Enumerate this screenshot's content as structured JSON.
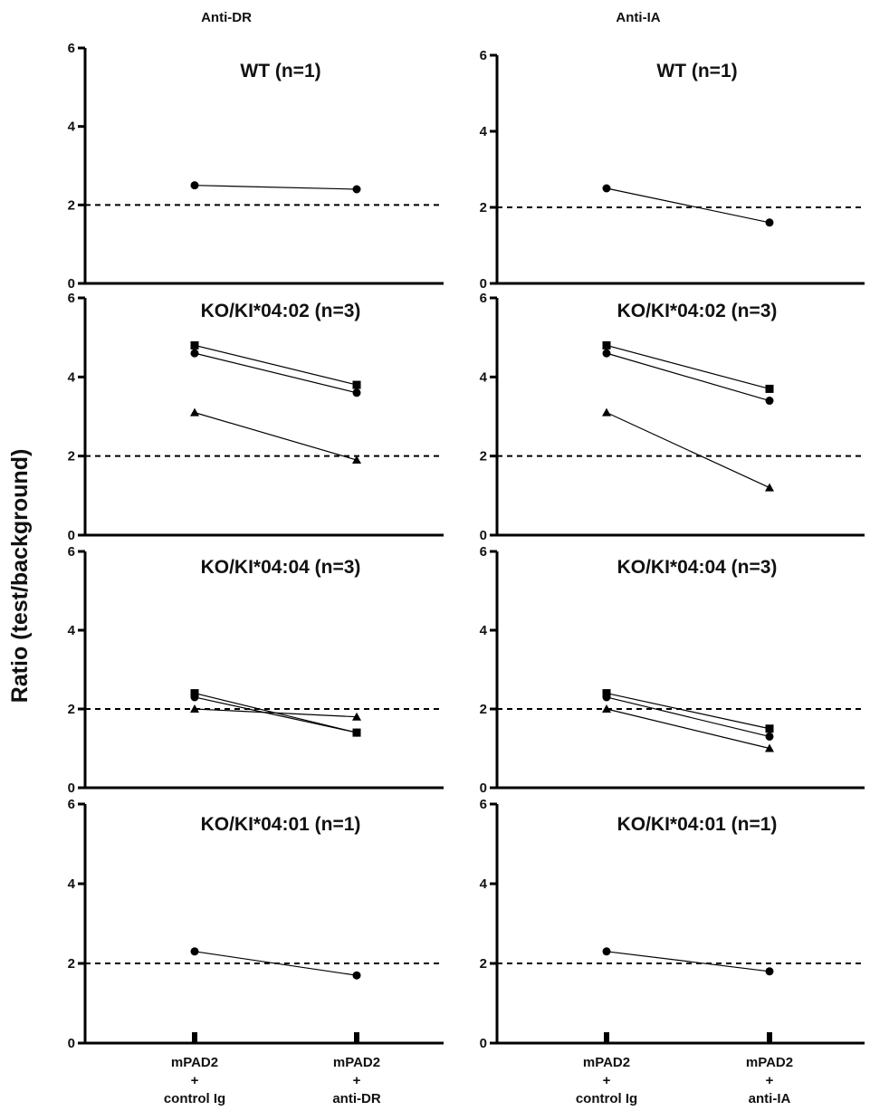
{
  "chart_data": {
    "type": "line",
    "y_axis_title": "Ratio (test/background)",
    "reference_line": 2,
    "ylim": [
      0,
      6
    ],
    "yticks": [
      "0",
      "2",
      "4",
      "6"
    ],
    "grid": false,
    "columns": [
      {
        "title": "Anti-DR",
        "categories": [
          [
            "mPAD2",
            "+",
            "control Ig"
          ],
          [
            "mPAD2",
            "+",
            "anti-DR"
          ]
        ],
        "panels": [
          {
            "title": "WT (n=1)",
            "series": [
              {
                "marker": "circle",
                "values": [
                  2.5,
                  2.4
                ]
              }
            ]
          },
          {
            "title": "KO/KI*04:02 (n=3)",
            "series": [
              {
                "marker": "square",
                "values": [
                  4.8,
                  3.8
                ]
              },
              {
                "marker": "circle",
                "values": [
                  4.6,
                  3.6
                ]
              },
              {
                "marker": "triangle",
                "values": [
                  3.1,
                  1.9
                ]
              }
            ]
          },
          {
            "title": "KO/KI*04:04 (n=3)",
            "series": [
              {
                "marker": "square",
                "values": [
                  2.4,
                  1.4
                ]
              },
              {
                "marker": "circle",
                "values": [
                  2.3,
                  1.4
                ]
              },
              {
                "marker": "triangle",
                "values": [
                  2.0,
                  1.8
                ]
              }
            ]
          },
          {
            "title": "KO/KI*04:01 (n=1)",
            "series": [
              {
                "marker": "circle",
                "values": [
                  2.3,
                  1.7
                ]
              }
            ]
          }
        ]
      },
      {
        "title": "Anti-IA",
        "categories": [
          [
            "mPAD2",
            "+",
            "control Ig"
          ],
          [
            "mPAD2",
            "+",
            "anti-IA"
          ]
        ],
        "panels": [
          {
            "title": "WT (n=1)",
            "series": [
              {
                "marker": "circle",
                "values": [
                  2.5,
                  1.6
                ]
              }
            ]
          },
          {
            "title": "KO/KI*04:02 (n=3)",
            "series": [
              {
                "marker": "square",
                "values": [
                  4.8,
                  3.7
                ]
              },
              {
                "marker": "circle",
                "values": [
                  4.6,
                  3.4
                ]
              },
              {
                "marker": "triangle",
                "values": [
                  3.1,
                  1.2
                ]
              }
            ]
          },
          {
            "title": "KO/KI*04:04 (n=3)",
            "series": [
              {
                "marker": "square",
                "values": [
                  2.4,
                  1.5
                ]
              },
              {
                "marker": "circle",
                "values": [
                  2.3,
                  1.3
                ]
              },
              {
                "marker": "triangle",
                "values": [
                  2.0,
                  1.0
                ]
              }
            ]
          },
          {
            "title": "KO/KI*04:01 (n=1)",
            "series": [
              {
                "marker": "circle",
                "values": [
                  2.3,
                  1.8
                ]
              }
            ]
          }
        ]
      }
    ]
  }
}
